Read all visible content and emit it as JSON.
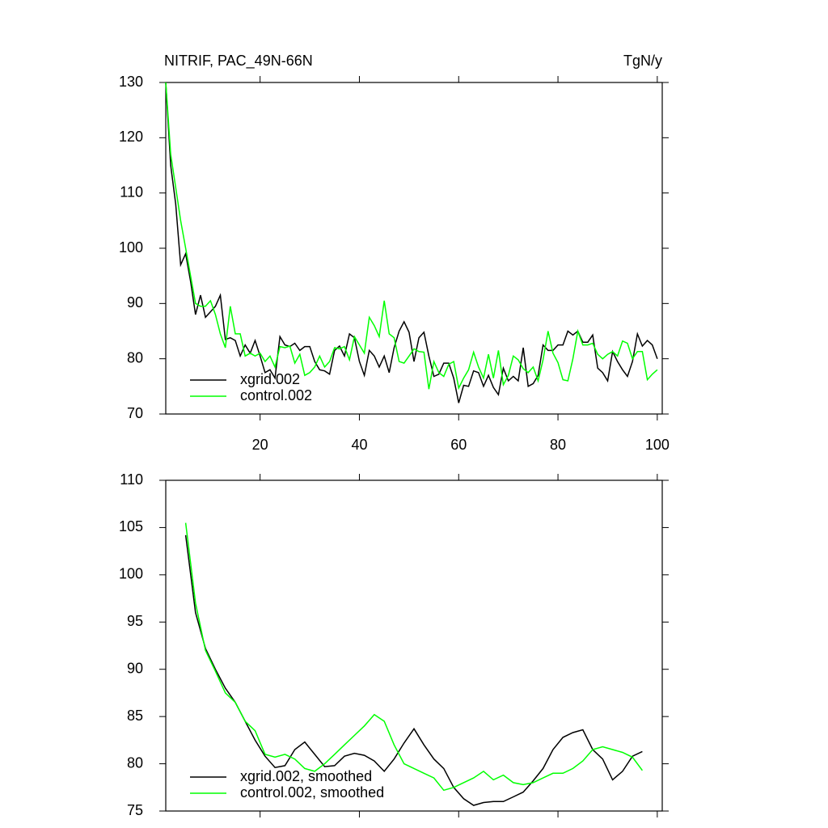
{
  "chart_data": [
    {
      "type": "line",
      "title": "NITRIF, PAC_49N-66N",
      "units": "TgN/y",
      "x": [
        1,
        2,
        3,
        4,
        5,
        6,
        7,
        8,
        9,
        10,
        11,
        12,
        13,
        14,
        15,
        16,
        17,
        18,
        19,
        20,
        21,
        22,
        23,
        24,
        25,
        26,
        27,
        28,
        29,
        30,
        31,
        32,
        33,
        34,
        35,
        36,
        37,
        38,
        39,
        40,
        41,
        42,
        43,
        44,
        45,
        46,
        47,
        48,
        49,
        50,
        51,
        52,
        53,
        54,
        55,
        56,
        57,
        58,
        59,
        60,
        61,
        62,
        63,
        64,
        65,
        66,
        67,
        68,
        69,
        70,
        71,
        72,
        73,
        74,
        75,
        76,
        77,
        78,
        79,
        80,
        81,
        82,
        83,
        84,
        85,
        86,
        87,
        88,
        89,
        90,
        91,
        92,
        93,
        94,
        95,
        96,
        97,
        98,
        99,
        100
      ],
      "series": [
        {
          "name": "xgrid.002",
          "color": "#000000",
          "values": [
            130,
            115,
            108,
            97,
            99,
            94,
            88,
            91.5,
            87.5,
            88.5,
            89.5,
            91.5,
            83.5,
            83.8,
            83.3,
            80.5,
            82.5,
            81,
            83.3,
            80.5,
            77.5,
            78,
            76.5,
            84,
            82.5,
            82.2,
            82.8,
            81.5,
            82.2,
            82.2,
            79.5,
            78,
            77.8,
            77.2,
            81.5,
            82.3,
            80.5,
            84.5,
            83.8,
            79.5,
            77,
            81.5,
            80.5,
            78.5,
            80.5,
            77.5,
            82,
            85,
            86.7,
            84.8,
            79.5,
            83.8,
            84.8,
            80.5,
            76.8,
            77.2,
            79.2,
            79.2,
            76.5,
            72,
            75.2,
            75,
            77.8,
            77.5,
            75,
            77,
            74.8,
            73.5,
            78.3,
            76,
            76.8,
            76,
            82,
            75,
            75.5,
            77,
            82.5,
            81.5,
            81.5,
            82.5,
            82.5,
            85,
            84.3,
            85,
            83,
            83,
            84.3,
            78.3,
            77.5,
            76,
            81.3,
            79.5,
            78,
            76.8,
            79.5,
            84.5,
            82.3,
            83.3,
            82.5,
            80
          ]
        },
        {
          "name": "control.002",
          "color": "#00ff00",
          "values": [
            130,
            117,
            111,
            105,
            100,
            95,
            90,
            89.5,
            89.5,
            90.5,
            88,
            84.5,
            82,
            89.5,
            84.5,
            84.5,
            80.5,
            81,
            80.5,
            81,
            79.5,
            80.5,
            78.5,
            82.2,
            82,
            82.3,
            79.2,
            80.8,
            77,
            77.5,
            78.5,
            80.5,
            78.5,
            79.5,
            82,
            81.8,
            82.2,
            79.8,
            84,
            82.5,
            81,
            87.5,
            86,
            84,
            90.5,
            84.5,
            83.8,
            79.5,
            79.2,
            80.5,
            81.8,
            81.3,
            81.2,
            74.5,
            79.5,
            77.5,
            76.8,
            79,
            79.5,
            74.7,
            76.5,
            78,
            81.2,
            78.5,
            76.5,
            80.8,
            76.5,
            81.5,
            75.3,
            77,
            80.5,
            79.8,
            78.2,
            77.5,
            78.5,
            76,
            79.8,
            85,
            81,
            79.3,
            76.2,
            76,
            80,
            85,
            82.5,
            82.5,
            82.8,
            80.8,
            80,
            80.8,
            81.3,
            80.5,
            83.2,
            82.8,
            80,
            81.3,
            81.3,
            76.2,
            77.2,
            78
          ]
        }
      ],
      "xlim": [
        1,
        101
      ],
      "xticks": [
        20,
        40,
        60,
        80,
        100
      ],
      "ylim": [
        70,
        130
      ],
      "yticks": [
        70,
        80,
        90,
        100,
        110,
        120,
        130
      ],
      "legend": "lower left"
    },
    {
      "type": "line",
      "x": [
        5,
        7,
        9,
        11,
        13,
        15,
        17,
        19,
        21,
        23,
        25,
        27,
        29,
        31,
        33,
        35,
        37,
        39,
        41,
        43,
        45,
        47,
        49,
        51,
        53,
        55,
        57,
        59,
        61,
        63,
        65,
        67,
        69,
        71,
        73,
        75,
        77,
        79,
        81,
        83,
        85,
        87,
        89,
        91,
        93,
        95,
        97
      ],
      "series": [
        {
          "name": "xgrid.002, smoothed",
          "color": "#000000",
          "values": [
            104.2,
            96,
            92.2,
            90,
            88,
            86.5,
            84.5,
            82.5,
            80.8,
            79.6,
            79.8,
            81.5,
            82.3,
            81,
            79.7,
            79.8,
            80.8,
            81.1,
            80.9,
            80.3,
            79.2,
            80.5,
            82.2,
            83.7,
            82,
            80.5,
            79.5,
            77.5,
            76.3,
            75.6,
            75.9,
            76,
            76,
            76.5,
            77,
            78.2,
            79.5,
            81.5,
            82.8,
            83.3,
            83.6,
            81.5,
            80.5,
            78.3,
            79.2,
            80.8,
            81.3
          ]
        },
        {
          "name": "control.002, smoothed",
          "color": "#00ff00",
          "values": [
            105.5,
            97,
            92,
            89.8,
            87.5,
            86.5,
            84.5,
            83.5,
            81,
            80.7,
            81,
            80.5,
            79.5,
            79.2,
            80,
            81,
            82,
            83,
            84,
            85.2,
            84.5,
            82,
            80,
            79.5,
            79,
            78.5,
            77.2,
            77.5,
            78,
            78.5,
            79.2,
            78.3,
            78.8,
            78,
            77.8,
            78,
            78.5,
            79,
            79,
            79.5,
            80.3,
            81.5,
            81.8,
            81.5,
            81.2,
            80.7,
            79.3
          ]
        }
      ],
      "xlim": [
        1,
        101
      ],
      "ylim": [
        75,
        110
      ],
      "yticks": [
        75,
        80,
        85,
        90,
        95,
        100,
        105,
        110
      ],
      "legend": "lower left"
    }
  ]
}
